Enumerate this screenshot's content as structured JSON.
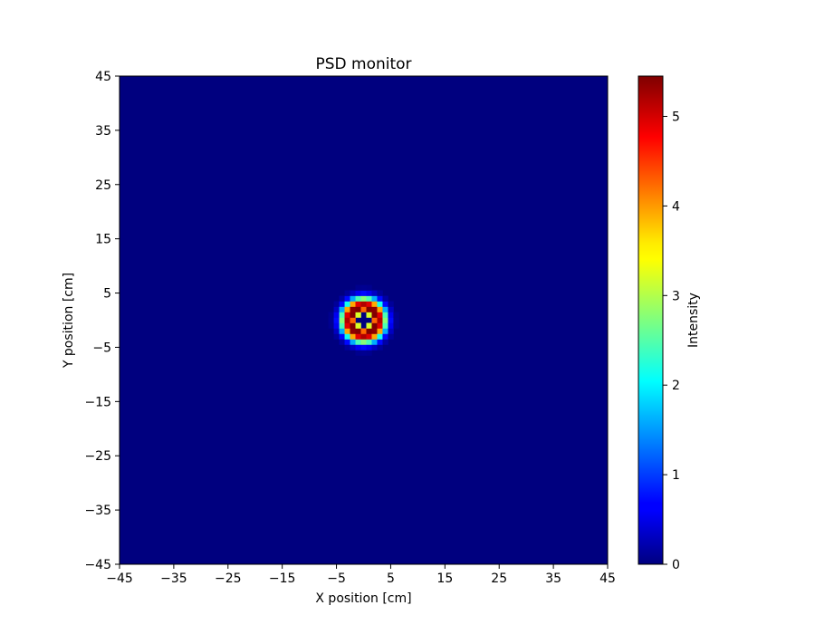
{
  "chart_data": {
    "type": "heatmap",
    "title": "PSD monitor",
    "xlabel": "X position [cm]",
    "ylabel": "Y  position [cm]",
    "colorbar_label": "Intensity",
    "colormap": "jet",
    "xlim": [
      -45,
      45
    ],
    "ylim": [
      -45,
      45
    ],
    "x_ticks": [
      -45,
      -35,
      -25,
      -15,
      -5,
      5,
      15,
      25,
      35,
      45
    ],
    "y_ticks": [
      -45,
      -35,
      -25,
      -15,
      -5,
      5,
      15,
      25,
      35,
      45
    ],
    "x_tick_labels": [
      "−45",
      "−35",
      "−25",
      "−15",
      "−5",
      "5",
      "15",
      "25",
      "35",
      "45"
    ],
    "y_tick_labels": [
      "−45",
      "−35",
      "−25",
      "−15",
      "−5",
      "5",
      "15",
      "25",
      "35",
      "45"
    ],
    "colorbar_ticks": [
      0,
      1,
      2,
      3,
      4,
      5
    ],
    "colorbar_tick_labels": [
      "0",
      "1",
      "2",
      "3",
      "4",
      "5"
    ],
    "value_range": [
      0,
      5.45
    ],
    "grid": false,
    "features": [
      {
        "shape": "ring",
        "center": [
          0,
          0
        ],
        "ring_radius": 2.7,
        "inner_hole_radius": 1.3,
        "outer_halo_radius": 5.5,
        "peak_intensity": 5.45,
        "background_intensity": 0
      }
    ]
  }
}
